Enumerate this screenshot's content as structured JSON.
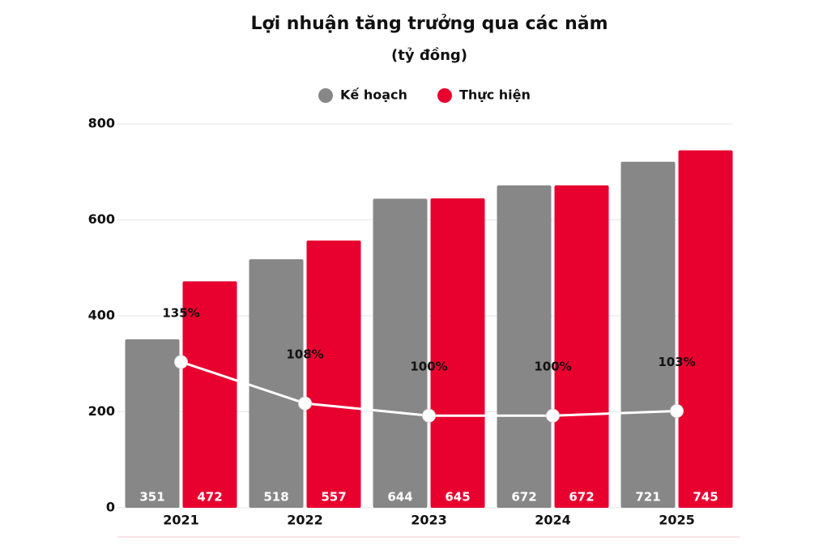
{
  "chart_data": {
    "type": "bar",
    "title": "Lợi nhuận tăng trưởng qua các năm",
    "subtitle": "(tỷ đồng)",
    "categories": [
      "2021",
      "2022",
      "2023",
      "2024",
      "2025"
    ],
    "series": [
      {
        "name": "Kế hoạch",
        "color": "#878787",
        "values": [
          351,
          518,
          644,
          672,
          721
        ]
      },
      {
        "name": "Thực hiện",
        "color": "#e8002f",
        "values": [
          472,
          557,
          645,
          672,
          745
        ]
      }
    ],
    "line": {
      "color": "#ffffff",
      "axis": "y2",
      "values": [
        135,
        108,
        100,
        100,
        103
      ],
      "value_labels": [
        "135%",
        "108%",
        "100%",
        "100%",
        "103%"
      ]
    },
    "ylim": [
      0,
      800
    ],
    "yticks": [
      0,
      200,
      400,
      600,
      800
    ],
    "y2lim": [
      40,
      290
    ],
    "grid": true
  }
}
